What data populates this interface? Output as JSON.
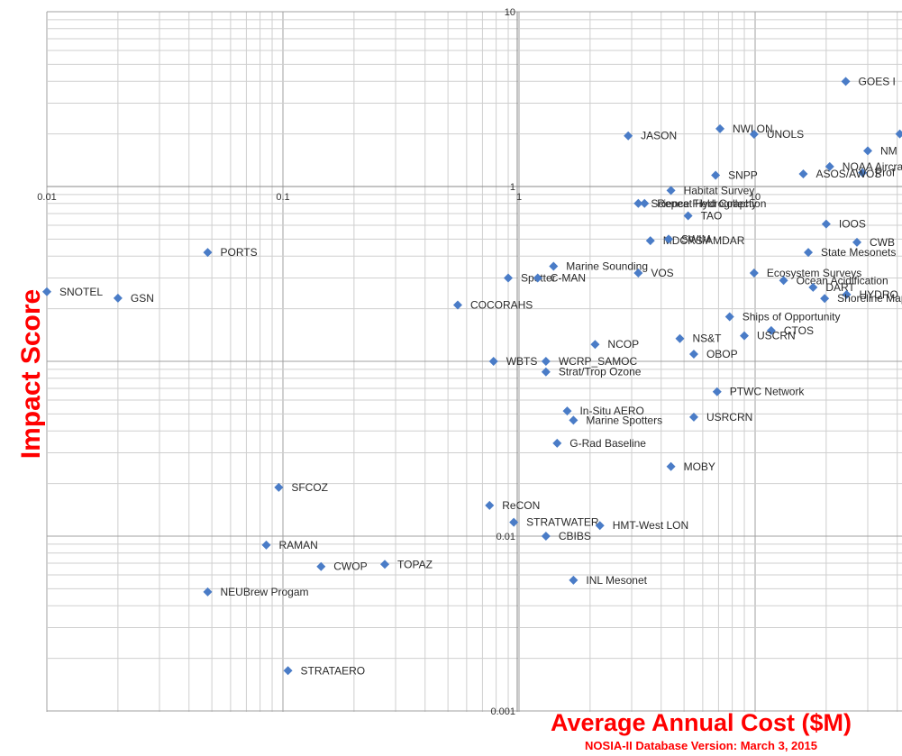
{
  "chart_data": {
    "type": "scatter",
    "title": "",
    "xlabel": "Average Annual Cost ($M)",
    "ylabel": "Impact Score",
    "footnote": "NOSIA-II Database Version: March 3, 2015",
    "x_scale": "log",
    "y_scale": "log",
    "xlim": [
      0.01,
      42
    ],
    "ylim": [
      0.001,
      10
    ],
    "grid": true,
    "label_color": "#ff0000",
    "marker_color": "#4a7cc7",
    "x_ticks": [
      {
        "value": 0.01,
        "label": "0.01"
      },
      {
        "value": 0.1,
        "label": "0.1"
      },
      {
        "value": 1,
        "label": "1"
      },
      {
        "value": 10,
        "label": "10"
      }
    ],
    "y_ticks": [
      {
        "value": 10,
        "label": "10"
      },
      {
        "value": 1,
        "label": "1"
      },
      {
        "value": 0.01,
        "label": "0.01"
      },
      {
        "value": 0.001,
        "label": "0.001"
      }
    ],
    "points": [
      {
        "label": "GOES I",
        "x": 24.2,
        "y": 3.99
      },
      {
        "label": "NWLON",
        "x": 7.1,
        "y": 2.14
      },
      {
        "label": "UNOLS",
        "x": 9.9,
        "y": 1.99
      },
      {
        "label": "JASON",
        "x": 2.9,
        "y": 1.95
      },
      {
        "label": "",
        "x": 41.0,
        "y": 2.0
      },
      {
        "label": "NM",
        "x": 30.0,
        "y": 1.6
      },
      {
        "label": "NOAA Aircraft",
        "x": 20.7,
        "y": 1.3
      },
      {
        "label": "Prof",
        "x": 28.5,
        "y": 1.2
      },
      {
        "label": "SNPP",
        "x": 6.8,
        "y": 1.16
      },
      {
        "label": "ASOS/AWOS",
        "x": 16.0,
        "y": 1.18
      },
      {
        "label": "Habitat Survey",
        "x": 4.4,
        "y": 0.95
      },
      {
        "label": "Science Field Collection",
        "x": 3.2,
        "y": 0.8
      },
      {
        "label": "Repeat Hydrography",
        "x": 3.4,
        "y": 0.8
      },
      {
        "label": "TAO",
        "x": 5.2,
        "y": 0.68
      },
      {
        "label": "IOOS",
        "x": 20.0,
        "y": 0.61
      },
      {
        "label": "CWB",
        "x": 27.0,
        "y": 0.48
      },
      {
        "label": "PORTS",
        "x": 0.048,
        "y": 0.42
      },
      {
        "label": "MDCRS/AMDAR",
        "x": 3.6,
        "y": 0.49
      },
      {
        "label": "SWIM",
        "x": 4.3,
        "y": 0.5
      },
      {
        "label": "State Mesonets",
        "x": 16.8,
        "y": 0.42
      },
      {
        "label": "Marine Sounding",
        "x": 1.4,
        "y": 0.35
      },
      {
        "label": "VOS",
        "x": 3.2,
        "y": 0.32
      },
      {
        "label": "Ecosystem Surveys",
        "x": 9.9,
        "y": 0.32
      },
      {
        "label": "Ocean Acidification",
        "x": 13.2,
        "y": 0.29
      },
      {
        "label": "Spotter",
        "x": 0.9,
        "y": 0.3
      },
      {
        "label": "C-MAN",
        "x": 1.2,
        "y": 0.3
      },
      {
        "label": "SNOTEL",
        "x": 0.01,
        "y": 0.25
      },
      {
        "label": "GSN",
        "x": 0.02,
        "y": 0.23
      },
      {
        "label": "DART",
        "x": 17.6,
        "y": 0.265
      },
      {
        "label": "HYDRO",
        "x": 24.4,
        "y": 0.241
      },
      {
        "label": "Shoreline Mapping",
        "x": 19.7,
        "y": 0.229
      },
      {
        "label": "COCORAHS",
        "x": 0.55,
        "y": 0.21
      },
      {
        "label": "Ships of Opportunity",
        "x": 7.8,
        "y": 0.18
      },
      {
        "label": "CTOS",
        "x": 11.7,
        "y": 0.15
      },
      {
        "label": "USCRN",
        "x": 9.0,
        "y": 0.14
      },
      {
        "label": "NS&T",
        "x": 4.8,
        "y": 0.135
      },
      {
        "label": "NCOP",
        "x": 2.1,
        "y": 0.125
      },
      {
        "label": "OBOP",
        "x": 5.5,
        "y": 0.11
      },
      {
        "label": "WBTS",
        "x": 0.78,
        "y": 0.1
      },
      {
        "label": "WCRP_SAMOC",
        "x": 1.3,
        "y": 0.1
      },
      {
        "label": "Strat/Trop Ozone",
        "x": 1.3,
        "y": 0.087
      },
      {
        "label": "PTWC Network",
        "x": 6.9,
        "y": 0.067
      },
      {
        "label": "In-Situ AERO",
        "x": 1.6,
        "y": 0.052
      },
      {
        "label": "USRCRN",
        "x": 5.5,
        "y": 0.048
      },
      {
        "label": "Marine Spotters",
        "x": 1.7,
        "y": 0.046
      },
      {
        "label": "G-Rad Baseline",
        "x": 1.45,
        "y": 0.034
      },
      {
        "label": "MOBY",
        "x": 4.4,
        "y": 0.025
      },
      {
        "label": "SFCOZ",
        "x": 0.096,
        "y": 0.019
      },
      {
        "label": "ReCON",
        "x": 0.75,
        "y": 0.015
      },
      {
        "label": "STRATWATER",
        "x": 0.95,
        "y": 0.012
      },
      {
        "label": "HMT-West LON",
        "x": 2.2,
        "y": 0.0115
      },
      {
        "label": "CBIBS",
        "x": 1.3,
        "y": 0.01
      },
      {
        "label": "RAMAN",
        "x": 0.085,
        "y": 0.0089
      },
      {
        "label": "TOPAZ",
        "x": 0.27,
        "y": 0.0069
      },
      {
        "label": "CWOP",
        "x": 0.145,
        "y": 0.0067
      },
      {
        "label": "INL Mesonet",
        "x": 1.7,
        "y": 0.0056
      },
      {
        "label": "NEUBrew Progam",
        "x": 0.048,
        "y": 0.0048
      },
      {
        "label": "STRATAERO",
        "x": 0.105,
        "y": 0.0017
      }
    ]
  }
}
